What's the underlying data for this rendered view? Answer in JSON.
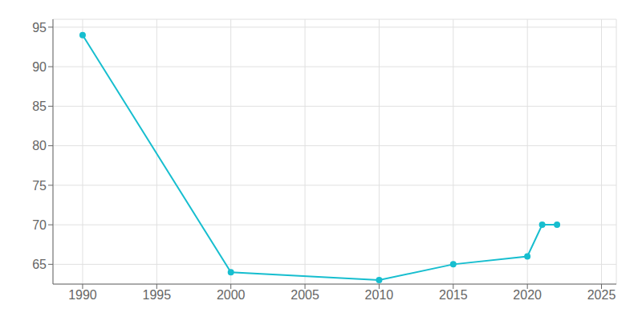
{
  "chart_data": {
    "type": "line",
    "x": [
      1990,
      2000,
      2010,
      2015,
      2020,
      2021,
      2022
    ],
    "values": [
      94,
      64,
      63,
      65,
      66,
      70,
      70
    ],
    "color": "#17becf",
    "marker": "circle",
    "xlim": [
      1988,
      2026
    ],
    "ylim": [
      62.5,
      96
    ],
    "xticks": [
      1990,
      1995,
      2000,
      2005,
      2010,
      2015,
      2020,
      2025
    ],
    "yticks": [
      65,
      70,
      75,
      80,
      85,
      90,
      95
    ],
    "grid": true
  }
}
